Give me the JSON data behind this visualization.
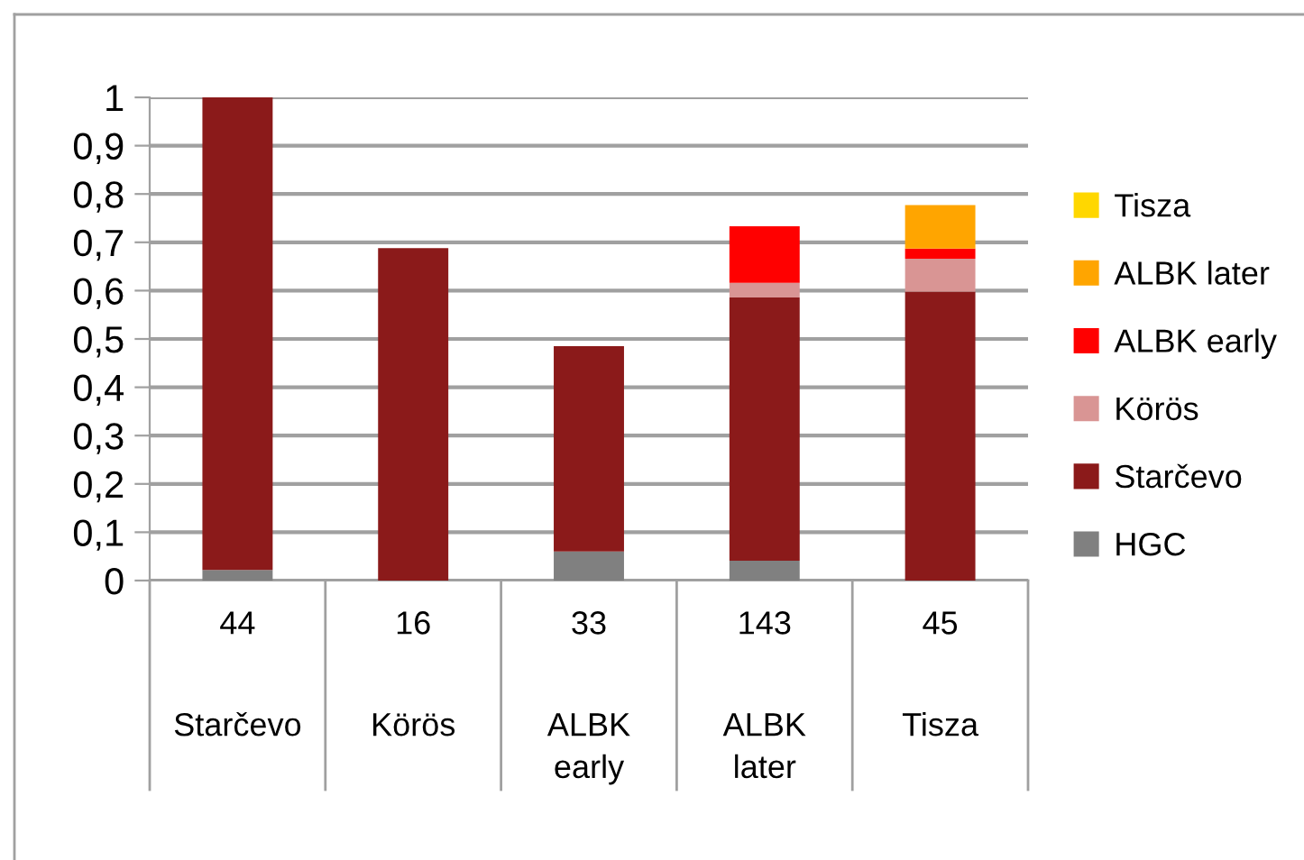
{
  "chart_data": {
    "type": "bar",
    "stacked": true,
    "categories": [
      "Starčevo",
      "Körös",
      "ALBK\nearly",
      "ALBK\nlater",
      "Tisza"
    ],
    "series": [
      {
        "name": "HGC",
        "color": "#808080",
        "values": [
          0.022,
          0,
          0.06,
          0.041,
          0
        ]
      },
      {
        "name": "Starčevo",
        "color": "#8b1a1a",
        "values": [
          0.978,
          0.688,
          0.425,
          0.545,
          0.598
        ]
      },
      {
        "name": "Körös",
        "color": "#d99594",
        "values": [
          0,
          0,
          0,
          0.03,
          0.068
        ]
      },
      {
        "name": "ALBK early",
        "color": "#ff0000",
        "values": [
          0,
          0,
          0,
          0.117,
          0.021
        ]
      },
      {
        "name": "ALBK later",
        "color": "#ffa500",
        "values": [
          0,
          0,
          0,
          0,
          0.09
        ]
      },
      {
        "name": "Tisza",
        "color": "#ffd700",
        "values": [
          0,
          0,
          0,
          0,
          0
        ]
      }
    ],
    "ylim": [
      0,
      1
    ],
    "yticks": [
      0,
      {
        "value": 0.1,
        "label": "0,1"
      },
      {
        "value": 0.2,
        "label": "0,2"
      },
      {
        "value": 0.3,
        "label": "0,3"
      },
      {
        "value": 0.4,
        "label": "0,4"
      },
      {
        "value": 0.5,
        "label": "0,5"
      },
      {
        "value": 0.6,
        "label": "0,6"
      },
      {
        "value": 0.7,
        "label": "0,7"
      },
      {
        "value": 0.8,
        "label": "0,8"
      },
      {
        "value": 0.9,
        "label": "0,9"
      },
      1
    ],
    "annotations": [
      "44",
      "16",
      "33",
      "143",
      "45"
    ],
    "grid": "y",
    "legend": "right"
  }
}
